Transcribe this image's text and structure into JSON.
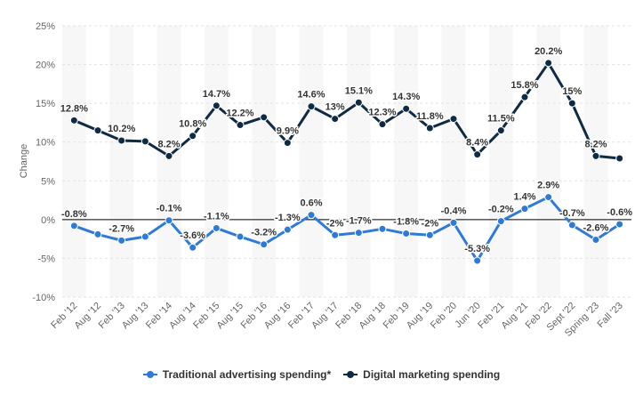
{
  "chart_data": {
    "type": "line",
    "ylabel": "Change",
    "ylim": [
      -10,
      25
    ],
    "yticks": [
      "25%",
      "20%",
      "15%",
      "10%",
      "5%",
      "0%",
      "-5%",
      "-10%"
    ],
    "ytick_values": [
      25,
      20,
      15,
      10,
      5,
      0,
      -5,
      -10
    ],
    "grid": true,
    "legend_position": "bottom",
    "categories": [
      "Feb '12",
      "Aug '12",
      "Feb '13",
      "Aug '13",
      "Feb '14",
      "Aug '14",
      "Feb '15",
      "Aug '15",
      "Feb '16",
      "Aug '16",
      "Feb '17",
      "Aug '17",
      "Feb '18",
      "Aug '18",
      "Feb '19",
      "Aug '19",
      "Feb '20",
      "Jun '20",
      "Feb '21",
      "Aug '21",
      "Feb '22",
      "Sept '22",
      "Spring '23",
      "Fall '23"
    ],
    "series": [
      {
        "name": "Traditional advertising spending*",
        "color": "#2e7ad8",
        "values": [
          -0.8,
          -1.9,
          -2.7,
          -2.2,
          -0.1,
          -3.6,
          -1.1,
          -2.2,
          -3.2,
          -1.3,
          0.6,
          -2.0,
          -1.7,
          -1.2,
          -1.8,
          -2.0,
          -0.4,
          -5.3,
          -0.2,
          1.4,
          2.9,
          -0.7,
          -2.6,
          -0.6
        ],
        "labels": [
          "-0.8%",
          "",
          "-2.7%",
          "",
          "-0.1%",
          "-3.6%",
          "-1.1%",
          "",
          "-3.2%",
          "-1.3%",
          "0.6%",
          "-2%",
          "-1.7%",
          "",
          "-1.8%",
          "-2%",
          "-0.4%",
          "-5.3%",
          "-0.2%",
          "1.4%",
          "2.9%",
          "-0.7%",
          "-2.6%",
          "-0.6%"
        ]
      },
      {
        "name": "Digital marketing spending",
        "color": "#0f2a44",
        "values": [
          12.8,
          11.5,
          10.2,
          10.1,
          8.2,
          10.8,
          14.7,
          12.2,
          13.2,
          9.9,
          14.6,
          13.0,
          15.1,
          12.3,
          14.3,
          11.8,
          13.0,
          8.4,
          11.5,
          15.8,
          20.2,
          15.0,
          8.2,
          7.9
        ],
        "labels": [
          "12.8%",
          "",
          "10.2%",
          "",
          "8.2%",
          "10.8%",
          "14.7%",
          "12.2%",
          "",
          "9.9%",
          "14.6%",
          "13%",
          "15.1%",
          "12.3%",
          "14.3%",
          "11.8%",
          "",
          "8.4%",
          "11.5%",
          "15.8%",
          "20.2%",
          "15%",
          "8.2%",
          ""
        ]
      }
    ]
  }
}
